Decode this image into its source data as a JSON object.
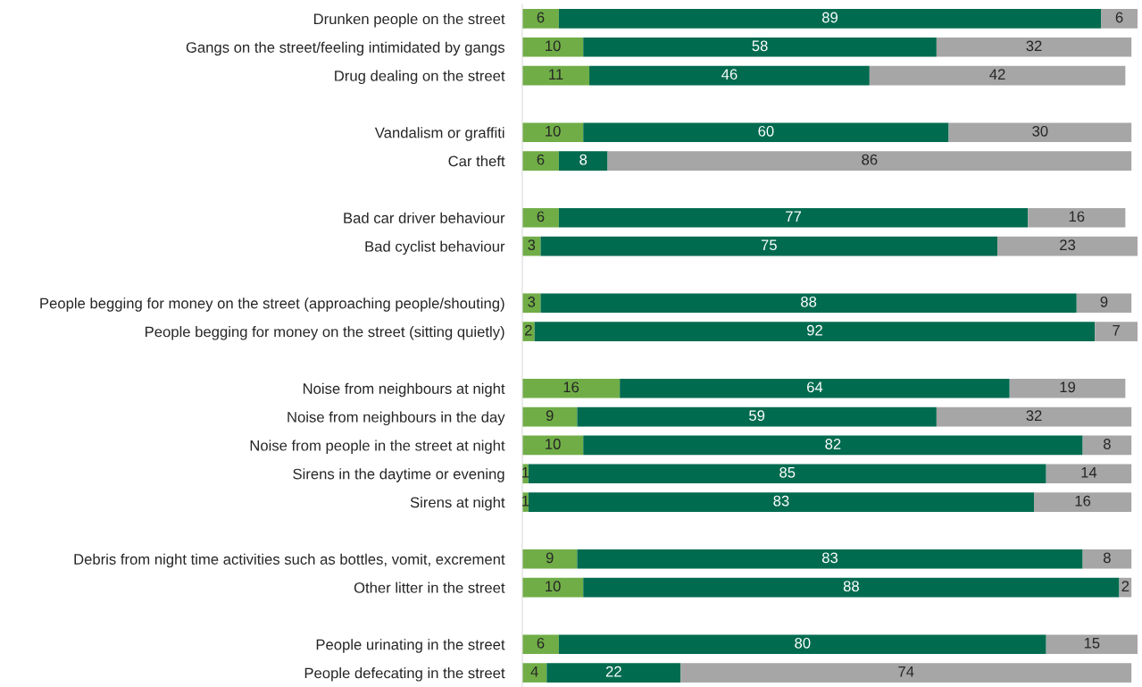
{
  "chart_data": {
    "type": "bar",
    "orientation": "horizontal",
    "stacked": true,
    "data_labels": true,
    "legend": false,
    "grid": false,
    "tick_labels": "y",
    "categories": [
      "Drunken people on the street",
      "Gangs on the street/feeling intimidated by gangs",
      "Drug dealing on the street",
      null,
      "Vandalism or graffiti",
      "Car theft",
      null,
      "Bad car driver behaviour",
      "Bad cyclist behaviour",
      null,
      "People begging for money on the street (approaching people/shouting)",
      "People begging for money on the street (sitting quietly)",
      null,
      "Noise from neighbours at night",
      "Noise from neighbours in the day",
      "Noise from people in the street at night",
      "Sirens in the daytime or evening",
      "Sirens at night",
      null,
      "Debris from night time activities such as bottles, vomit, excrement",
      "Other litter in the street",
      null,
      "People urinating in the street",
      "People defecating in the street"
    ],
    "series": [
      {
        "color": "#70ad47",
        "values": [
          6,
          10,
          11,
          null,
          10,
          6,
          null,
          6,
          3,
          null,
          3,
          2,
          null,
          16,
          9,
          10,
          1,
          1,
          null,
          9,
          10,
          null,
          6,
          4
        ]
      },
      {
        "color": "#006b4f",
        "values": [
          89,
          58,
          46,
          null,
          60,
          8,
          null,
          77,
          75,
          null,
          88,
          92,
          null,
          64,
          59,
          82,
          85,
          83,
          null,
          83,
          88,
          null,
          80,
          22
        ]
      },
      {
        "color": "#a6a6a6",
        "values": [
          6,
          32,
          42,
          null,
          30,
          86,
          null,
          16,
          23,
          null,
          9,
          7,
          null,
          19,
          32,
          8,
          14,
          16,
          null,
          8,
          2,
          null,
          15,
          74
        ]
      }
    ]
  }
}
